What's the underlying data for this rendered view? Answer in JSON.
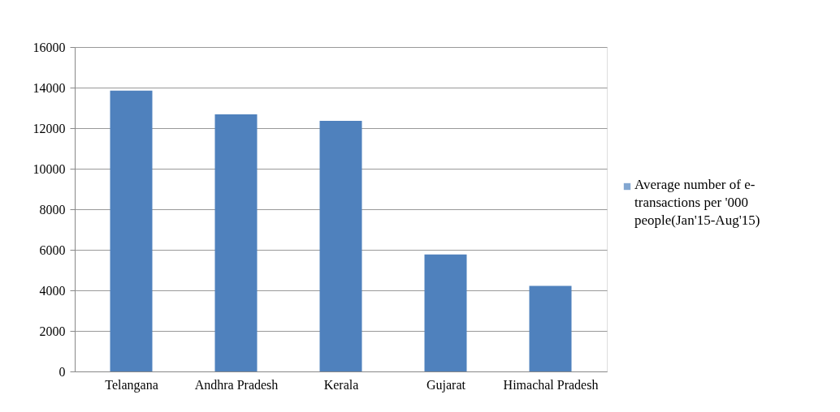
{
  "chart_data": {
    "type": "bar",
    "categories": [
      "Telangana",
      "Andhra Pradesh",
      "Kerala",
      "Gujarat",
      "Himachal Pradesh"
    ],
    "series": [
      {
        "name": "Average number of e-transactions per '000 people(Jan'15-Aug'15)",
        "color": "#4f81bd",
        "values": [
          13850,
          12680,
          12360,
          5770,
          4220
        ]
      }
    ],
    "ylim": [
      0,
      16000
    ],
    "yticks": [
      0,
      2000,
      4000,
      6000,
      8000,
      10000,
      12000,
      14000,
      16000
    ],
    "grid": "y",
    "legend": "right"
  }
}
